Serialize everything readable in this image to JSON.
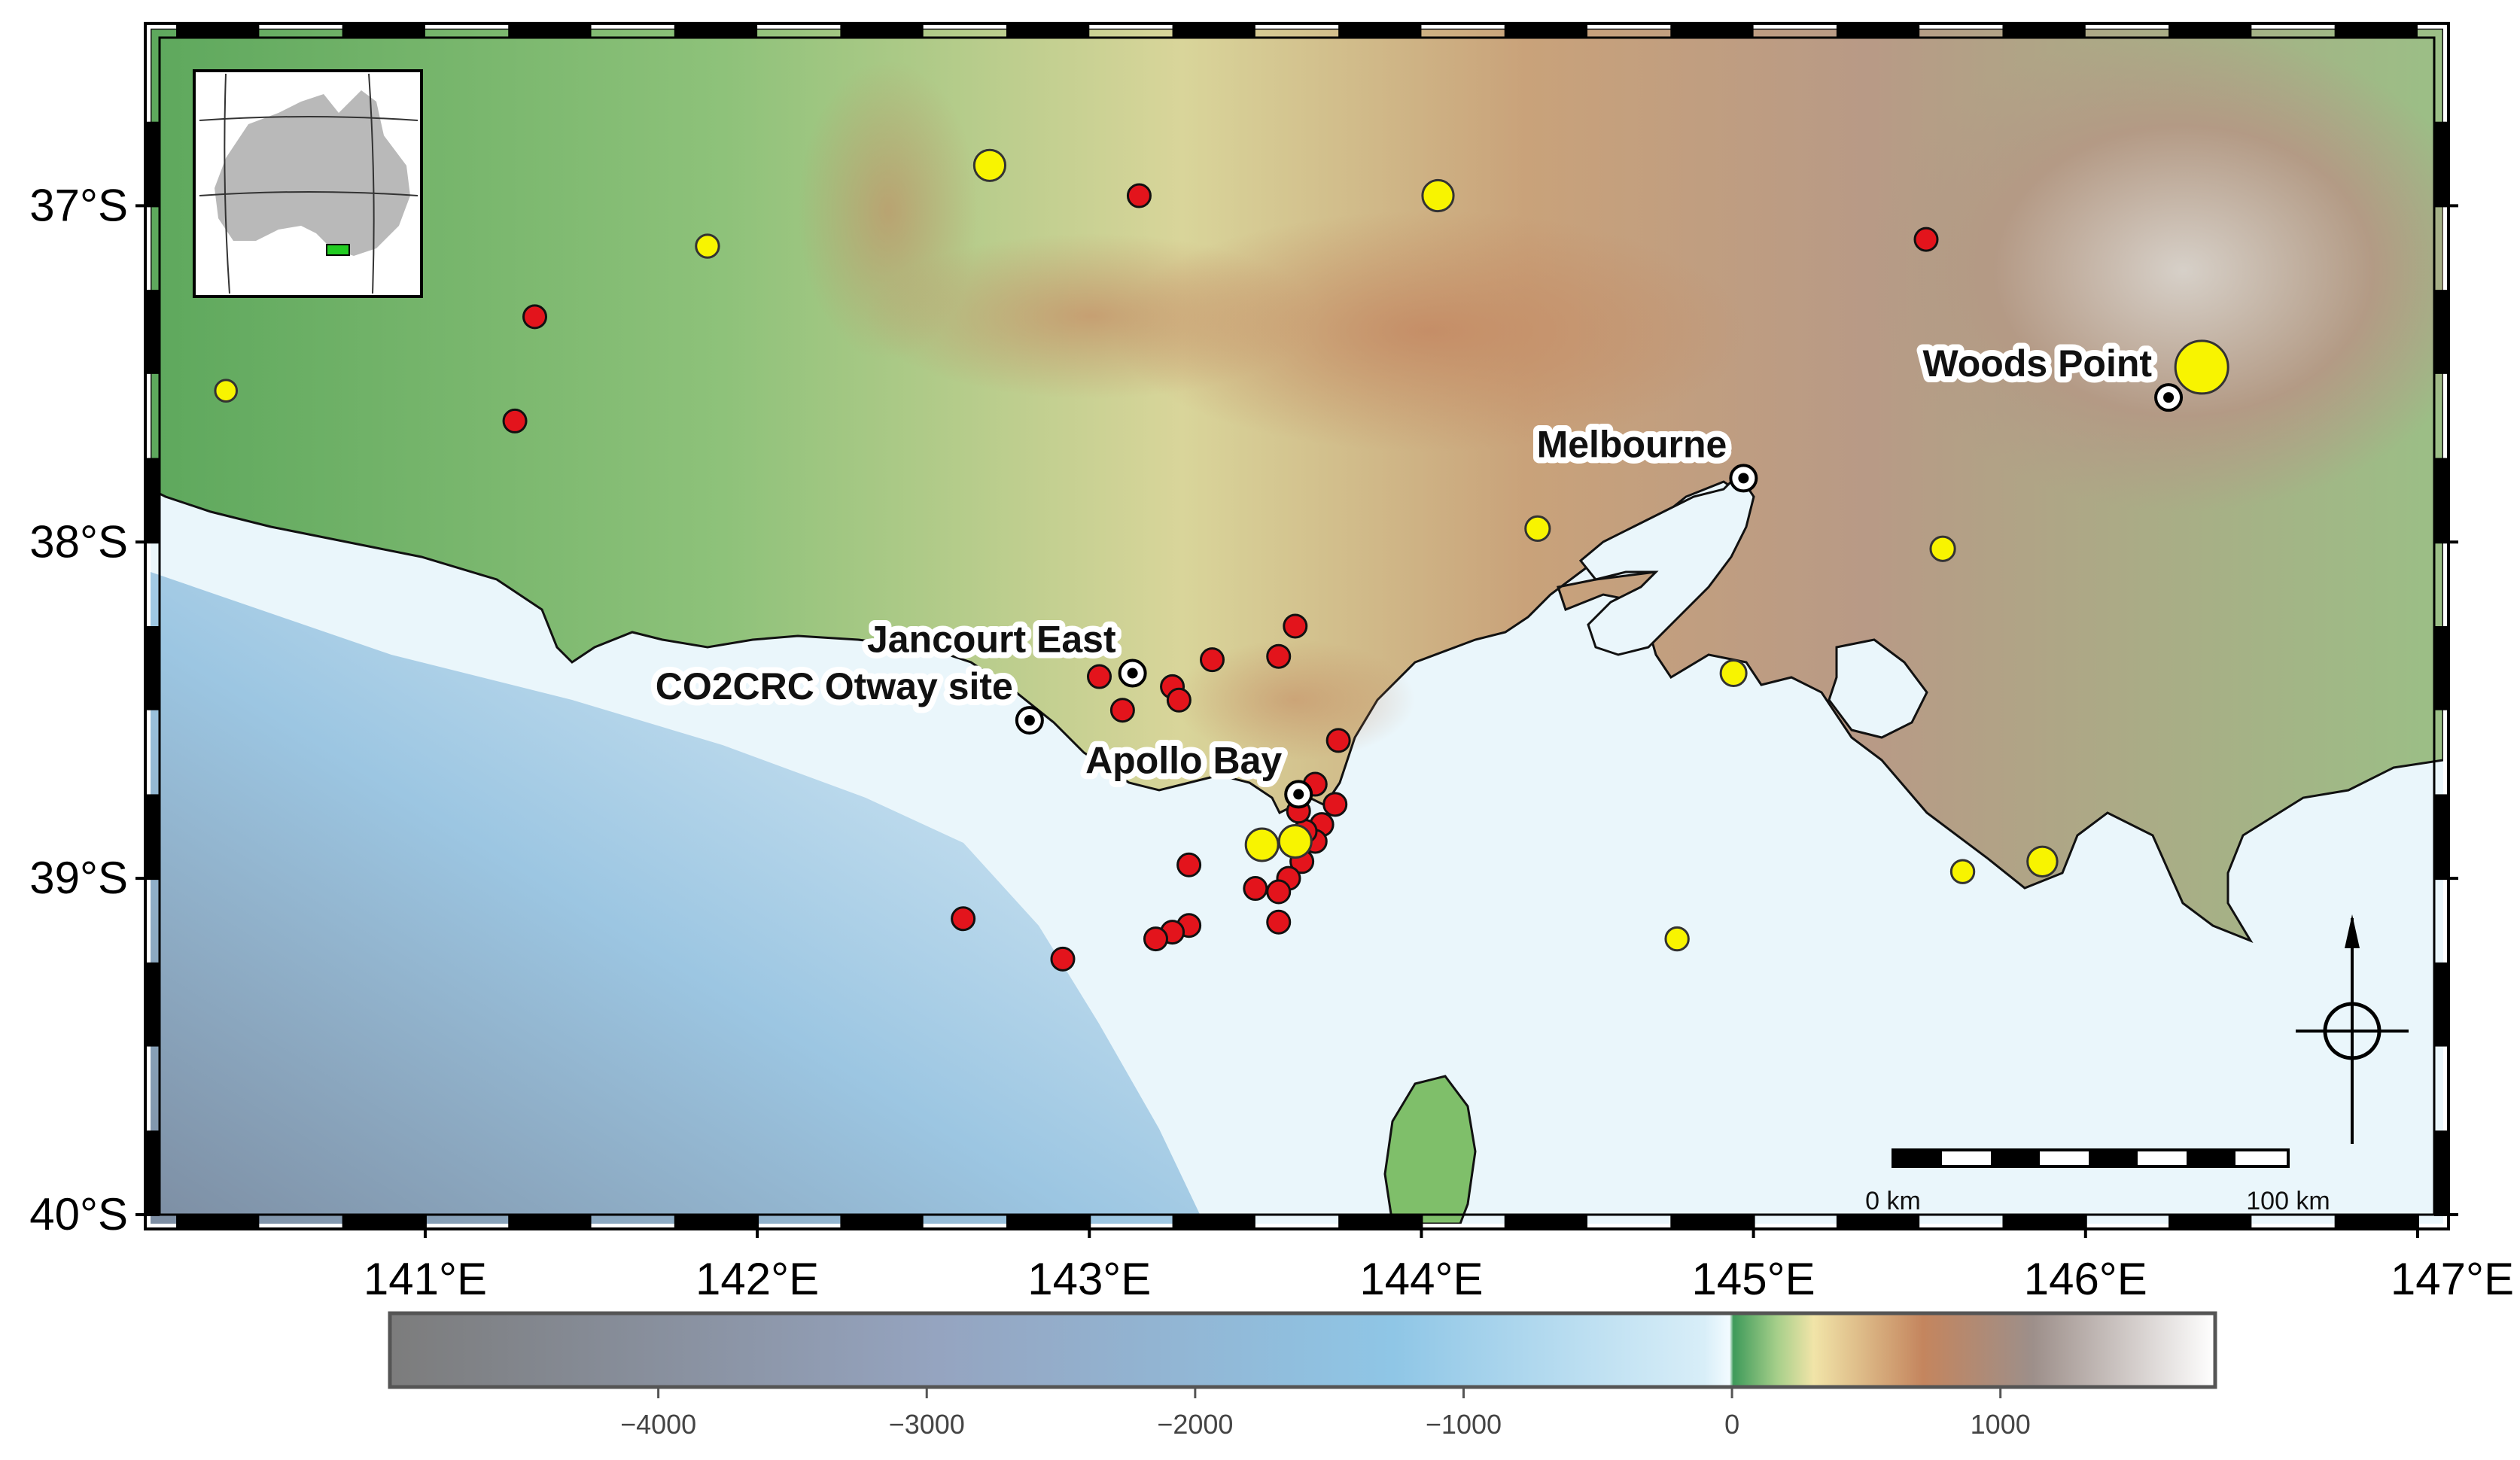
{
  "map": {
    "lat_labels": [
      {
        "value": -37,
        "label": "37°S"
      },
      {
        "value": -38,
        "label": "38°S"
      },
      {
        "value": -39,
        "label": "39°S"
      },
      {
        "value": -40,
        "label": "40°S"
      }
    ],
    "lon_labels": [
      {
        "value": 141,
        "label": "141°E"
      },
      {
        "value": 142,
        "label": "142°E"
      },
      {
        "value": 143,
        "label": "143°E"
      },
      {
        "value": 144,
        "label": "144°E"
      },
      {
        "value": 145,
        "label": "145°E"
      },
      {
        "value": 146,
        "label": "146°E"
      },
      {
        "value": 147,
        "label": "147°E"
      }
    ],
    "lon_range": [
      140.2,
      147.05
    ],
    "lat_range": [
      -40.0,
      -36.5
    ],
    "places": [
      {
        "name": "Woods Point",
        "lon": 146.25,
        "lat": -37.57
      },
      {
        "name": "Melbourne",
        "lon": 144.97,
        "lat": -37.81
      },
      {
        "name": "Jancourt East",
        "lon": 143.13,
        "lat": -38.39
      },
      {
        "name": "CO2CRC Otway site",
        "lon": 142.82,
        "lat": -38.53
      },
      {
        "name": "Apollo Bay",
        "lon": 143.63,
        "lat": -38.75
      }
    ],
    "events_red": [
      [
        143.15,
        -36.97
      ],
      [
        145.52,
        -37.1
      ],
      [
        141.33,
        -37.33
      ],
      [
        141.27,
        -37.64
      ],
      [
        143.62,
        -38.25
      ],
      [
        143.57,
        -38.34
      ],
      [
        143.37,
        -38.35
      ],
      [
        143.03,
        -38.4
      ],
      [
        143.25,
        -38.43
      ],
      [
        143.27,
        -38.47
      ],
      [
        143.1,
        -38.5
      ],
      [
        143.75,
        -38.59
      ],
      [
        143.68,
        -38.72
      ],
      [
        143.74,
        -38.78
      ],
      [
        143.7,
        -38.84
      ],
      [
        143.68,
        -38.89
      ],
      [
        143.64,
        -38.95
      ],
      [
        143.6,
        -39.0
      ],
      [
        143.57,
        -39.04
      ],
      [
        143.5,
        -39.03
      ],
      [
        143.65,
        -38.86
      ],
      [
        143.63,
        -38.8
      ],
      [
        143.3,
        -38.96
      ],
      [
        142.62,
        -39.12
      ],
      [
        143.3,
        -39.14
      ],
      [
        143.25,
        -39.16
      ],
      [
        143.2,
        -39.18
      ],
      [
        143.57,
        -39.13
      ],
      [
        142.92,
        -39.24
      ]
    ],
    "events_yellow": [
      {
        "lon": 142.7,
        "lat": -36.88,
        "mag": 3.4
      },
      {
        "lon": 144.05,
        "lat": -36.97,
        "mag": 3.4
      },
      {
        "lon": 141.85,
        "lat": -37.12,
        "mag": 2.8
      },
      {
        "lon": 140.4,
        "lat": -37.55,
        "mag": 2.7
      },
      {
        "lon": 146.35,
        "lat": -37.48,
        "mag": 5.0
      },
      {
        "lon": 144.35,
        "lat": -37.96,
        "mag": 2.9
      },
      {
        "lon": 145.57,
        "lat": -38.02,
        "mag": 2.9
      },
      {
        "lon": 144.94,
        "lat": -38.39,
        "mag": 3.0
      },
      {
        "lon": 143.52,
        "lat": -38.9,
        "mag": 3.5
      },
      {
        "lon": 143.62,
        "lat": -38.89,
        "mag": 3.5
      },
      {
        "lon": 145.63,
        "lat": -38.98,
        "mag": 2.8
      },
      {
        "lon": 145.87,
        "lat": -38.95,
        "mag": 3.3
      },
      {
        "lon": 144.77,
        "lat": -39.18,
        "mag": 2.8
      }
    ],
    "scale_bar": {
      "start_label": "0 km",
      "end_label": "100 km"
    },
    "colorbar": {
      "min": -5000,
      "max": 1800,
      "ticks": [
        {
          "value": -4000,
          "label": "−4000"
        },
        {
          "value": -3000,
          "label": "−3000"
        },
        {
          "value": -2000,
          "label": "−2000"
        },
        {
          "value": -1000,
          "label": "−1000"
        },
        {
          "value": 0,
          "label": "0"
        },
        {
          "value": 1000,
          "label": "1000"
        }
      ]
    },
    "colors": {
      "event_red": "#e3141c",
      "event_yellow": "#f8f400",
      "ocean": "#eaf6fb",
      "land": "#7fbf6a",
      "inset_box": "#22cc22"
    }
  }
}
